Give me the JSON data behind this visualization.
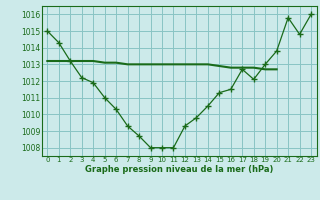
{
  "series1": {
    "x": [
      0,
      1,
      2,
      3,
      4,
      5,
      6,
      7,
      8,
      9,
      10,
      11,
      12,
      13,
      14,
      15,
      16,
      17,
      18,
      19,
      20,
      21,
      22,
      23
    ],
    "y": [
      1015.0,
      1014.3,
      1013.2,
      1012.2,
      1011.9,
      1011.0,
      1010.3,
      1009.3,
      1008.7,
      1008.0,
      1008.0,
      1008.0,
      1009.3,
      1009.8,
      1010.5,
      1011.3,
      1011.5,
      1012.7,
      1012.1,
      1013.0,
      1013.8,
      1015.8,
      1014.8,
      1016.0
    ]
  },
  "series2": {
    "x": [
      0,
      1,
      2,
      3,
      4,
      5,
      6,
      7,
      8,
      9,
      10,
      11,
      12,
      13,
      14,
      15,
      16,
      17,
      18,
      19,
      20
    ],
    "y": [
      1013.2,
      1013.2,
      1013.2,
      1013.2,
      1013.2,
      1013.1,
      1013.1,
      1013.0,
      1013.0,
      1013.0,
      1013.0,
      1013.0,
      1013.0,
      1013.0,
      1013.0,
      1012.9,
      1012.8,
      1012.8,
      1012.8,
      1012.7,
      1012.7
    ]
  },
  "line_color": "#1a6b1a",
  "bg_color": "#cceaea",
  "grid_color": "#88c4c4",
  "xlabel": "Graphe pression niveau de la mer (hPa)",
  "ylim": [
    1007.5,
    1016.5
  ],
  "xlim": [
    -0.5,
    23.5
  ],
  "yticks": [
    1008,
    1009,
    1010,
    1011,
    1012,
    1013,
    1014,
    1015,
    1016
  ],
  "xticks": [
    0,
    1,
    2,
    3,
    4,
    5,
    6,
    7,
    8,
    9,
    10,
    11,
    12,
    13,
    14,
    15,
    16,
    17,
    18,
    19,
    20,
    21,
    22,
    23
  ]
}
